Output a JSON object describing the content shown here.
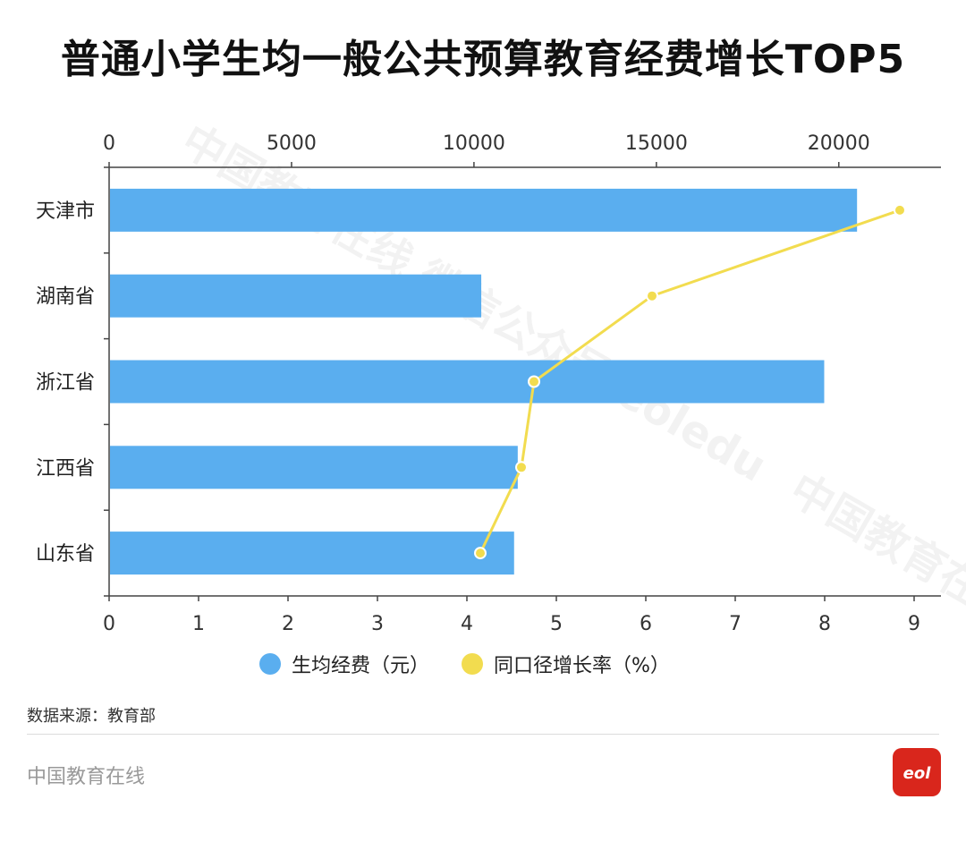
{
  "title": "普通小学生均一般公共预算教育经费增长TOP5",
  "chart_data": {
    "type": "bar",
    "orientation": "horizontal",
    "categories": [
      "天津市",
      "湖南省",
      "浙江省",
      "江西省",
      "山东省"
    ],
    "series": [
      {
        "name": "生均经费（元）",
        "type": "bar",
        "axis": "top",
        "values": [
          20500,
          10200,
          19600,
          11200,
          11100
        ],
        "color": "#5aaeef"
      },
      {
        "name": "同口径增长率（%）",
        "type": "line",
        "axis": "bottom",
        "values": [
          8.84,
          6.07,
          4.75,
          4.61,
          4.15
        ],
        "color": "#f2dc4f"
      }
    ],
    "top_axis": {
      "ticks": [
        0,
        5000,
        10000,
        15000,
        20000
      ],
      "range": [
        0,
        22800
      ]
    },
    "bottom_axis": {
      "ticks": [
        0,
        1,
        2,
        3,
        4,
        5,
        6,
        7,
        8,
        9
      ],
      "range": [
        0,
        9.3
      ]
    },
    "legend": [
      "生均经费（元）",
      "同口径增长率（%）"
    ],
    "legend_position": "bottom",
    "grid": false
  },
  "source": "数据来源：教育部",
  "footer_brand": "中国教育在线",
  "logo_text": "eol",
  "watermark": "中国教育在线 微信公众号 eoledu",
  "watermark_2": "中国教育在线 微信公众号 eoledu"
}
